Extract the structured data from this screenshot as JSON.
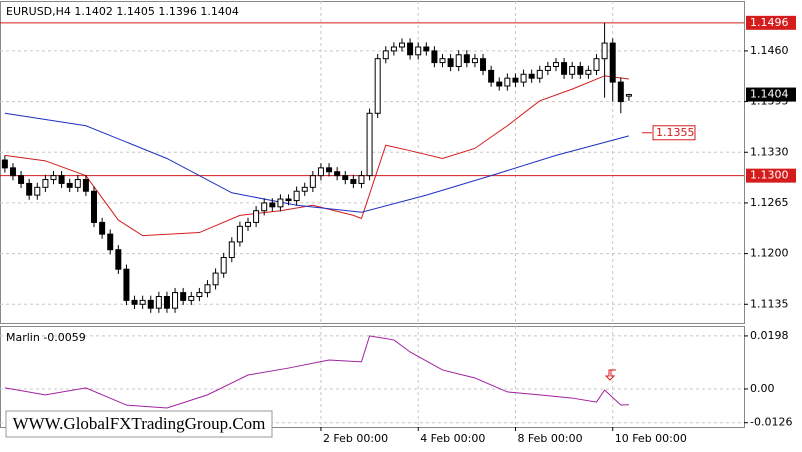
{
  "chart_data": [
    {
      "type": "candlestick",
      "title": "EURUSD,H4  1.1402 1.1405 1.1396 1.1404",
      "open": [
        1.132,
        1.131,
        1.13,
        1.129,
        1.1275,
        1.1285,
        1.1295,
        1.13,
        1.129,
        1.1285,
        1.1295,
        1.128,
        1.124,
        1.1225,
        1.1205,
        1.118,
        1.114,
        1.1135,
        1.114,
        1.113,
        1.1145,
        1.113,
        1.115,
        1.114,
        1.1145,
        1.115,
        1.116,
        1.1175,
        1.1195,
        1.1215,
        1.1235,
        1.124,
        1.1255,
        1.1265,
        1.126,
        1.127,
        1.1268,
        1.128,
        1.1285,
        1.13,
        1.131,
        1.1305,
        1.13,
        1.1295,
        1.129,
        1.13,
        1.138,
        1.145,
        1.146,
        1.1465,
        1.147,
        1.1455,
        1.1465,
        1.146,
        1.1445,
        1.145,
        1.144,
        1.1455,
        1.1445,
        1.145,
        1.1435,
        1.142,
        1.1415,
        1.1425,
        1.142,
        1.143,
        1.1425,
        1.1435,
        1.144,
        1.1445,
        1.143,
        1.144,
        1.143,
        1.1435,
        1.145,
        1.147,
        1.142,
        1.1402
      ],
      "high": [
        1.1326,
        1.1316,
        1.1306,
        1.1296,
        1.1291,
        1.1301,
        1.1306,
        1.1306,
        1.1296,
        1.1301,
        1.1301,
        1.1286,
        1.1246,
        1.1231,
        1.1211,
        1.1186,
        1.1146,
        1.1146,
        1.1146,
        1.1151,
        1.1151,
        1.1156,
        1.1156,
        1.1151,
        1.1156,
        1.1166,
        1.1181,
        1.1201,
        1.1221,
        1.1241,
        1.1246,
        1.1261,
        1.1271,
        1.1271,
        1.1276,
        1.1276,
        1.1286,
        1.1291,
        1.1306,
        1.1316,
        1.1316,
        1.1311,
        1.1306,
        1.1301,
        1.1306,
        1.1386,
        1.1456,
        1.1466,
        1.1471,
        1.1476,
        1.1476,
        1.1471,
        1.1471,
        1.1466,
        1.1456,
        1.1456,
        1.1461,
        1.1461,
        1.1456,
        1.1456,
        1.1441,
        1.1426,
        1.1431,
        1.1431,
        1.1436,
        1.1436,
        1.1441,
        1.1446,
        1.1451,
        1.1451,
        1.1446,
        1.1446,
        1.1441,
        1.1456,
        1.1496,
        1.1476,
        1.1426,
        1.1405
      ],
      "low": [
        1.1304,
        1.1294,
        1.1284,
        1.1269,
        1.1269,
        1.1279,
        1.1289,
        1.1284,
        1.1279,
        1.1279,
        1.1274,
        1.1234,
        1.1219,
        1.1199,
        1.1174,
        1.1134,
        1.1129,
        1.1129,
        1.1124,
        1.1124,
        1.1124,
        1.1124,
        1.1134,
        1.1134,
        1.1139,
        1.1144,
        1.1154,
        1.1169,
        1.1189,
        1.1209,
        1.1229,
        1.1234,
        1.1249,
        1.1254,
        1.1254,
        1.1262,
        1.1262,
        1.1274,
        1.1279,
        1.1294,
        1.1299,
        1.1294,
        1.1289,
        1.1284,
        1.1284,
        1.1294,
        1.1374,
        1.1444,
        1.1454,
        1.1459,
        1.1449,
        1.1449,
        1.1454,
        1.1439,
        1.1439,
        1.1434,
        1.1434,
        1.1439,
        1.1439,
        1.1429,
        1.1414,
        1.1409,
        1.1409,
        1.1414,
        1.1414,
        1.1419,
        1.1419,
        1.1429,
        1.1434,
        1.1424,
        1.1424,
        1.1424,
        1.1424,
        1.1429,
        1.14,
        1.1395,
        1.138,
        1.1396
      ],
      "close": [
        1.131,
        1.13,
        1.129,
        1.1275,
        1.1285,
        1.1295,
        1.13,
        1.129,
        1.1285,
        1.1295,
        1.128,
        1.124,
        1.1225,
        1.1205,
        1.118,
        1.114,
        1.1135,
        1.114,
        1.113,
        1.1145,
        1.113,
        1.115,
        1.114,
        1.1145,
        1.115,
        1.116,
        1.1175,
        1.1195,
        1.1215,
        1.1235,
        1.124,
        1.1255,
        1.1265,
        1.126,
        1.127,
        1.1268,
        1.128,
        1.1285,
        1.13,
        1.131,
        1.1305,
        1.13,
        1.1295,
        1.129,
        1.13,
        1.138,
        1.145,
        1.146,
        1.1465,
        1.147,
        1.1455,
        1.1465,
        1.146,
        1.1445,
        1.145,
        1.144,
        1.1455,
        1.1445,
        1.145,
        1.1435,
        1.142,
        1.1415,
        1.1425,
        1.142,
        1.143,
        1.1425,
        1.1435,
        1.144,
        1.1445,
        1.143,
        1.144,
        1.143,
        1.1435,
        1.145,
        1.147,
        1.142,
        1.1395,
        1.1404
      ],
      "series": [
        {
          "color": "#d41c1c",
          "x": [
            0,
            5,
            10,
            14,
            17,
            24,
            29,
            34,
            38,
            43,
            44,
            47,
            50,
            54,
            58,
            62,
            66,
            70,
            74,
            77
          ],
          "values": [
            1.1326,
            1.1319,
            1.13,
            1.1243,
            1.1223,
            1.1227,
            1.1249,
            1.1255,
            1.1262,
            1.1249,
            1.1245,
            1.1339,
            1.1332,
            1.1322,
            1.1335,
            1.1364,
            1.1396,
            1.1411,
            1.1428,
            1.1424
          ]
        },
        {
          "color": "#1c2fc4",
          "x": [
            0,
            10,
            20,
            28,
            36,
            44,
            52,
            60,
            68,
            77
          ],
          "values": [
            1.138,
            1.1364,
            1.1322,
            1.1278,
            1.1262,
            1.1253,
            1.1275,
            1.13,
            1.1326,
            1.1351
          ]
        }
      ],
      "levels": [
        {
          "value": 1.1496,
          "label": "1.1496"
        },
        {
          "value": 1.13,
          "label": "1.1300"
        }
      ],
      "current_price": {
        "value": 1.1404,
        "label": "1.1404"
      },
      "ma_marker": {
        "value": 1.1355,
        "label": "1.1355"
      },
      "xlim": [
        -0.6,
        91.2
      ],
      "ylim": [
        1.1111,
        1.1524
      ],
      "yticks": [
        {
          "value": 1.1135,
          "label": "1.1135"
        },
        {
          "value": 1.12,
          "label": "1.1200"
        },
        {
          "value": 1.1265,
          "label": "1.1265"
        },
        {
          "value": 1.133,
          "label": "1.1330"
        },
        {
          "value": 1.1395,
          "label": "1.1395"
        },
        {
          "value": 1.146,
          "label": "1.1460"
        }
      ],
      "grid": true
    },
    {
      "type": "line",
      "title": "Marlin -0.0059",
      "series": [
        {
          "color": "#a020a0",
          "x": [
            0,
            5,
            10,
            15,
            20,
            25,
            30,
            35,
            40,
            44,
            45,
            48,
            50,
            54,
            58,
            62,
            66,
            70,
            73,
            74,
            76,
            77
          ],
          "values": [
            0.0004,
            -0.0022,
            0.0004,
            -0.006,
            -0.0071,
            -0.0022,
            0.0052,
            0.0078,
            0.0108,
            0.0101,
            0.0198,
            0.0183,
            0.0138,
            0.0071,
            0.0041,
            -0.0011,
            -0.0022,
            -0.0034,
            -0.0049,
            -0.0004,
            -0.006,
            -0.0059
          ]
        }
      ],
      "xlim": [
        -0.6,
        91.2
      ],
      "ylim": [
        -0.0142,
        0.0235
      ],
      "yticks": [
        0.0198,
        {
          "value": 0,
          "label": "0.00"
        },
        -0.0126
      ],
      "xticks": [
        {
          "value": 39,
          "label": "2 Feb 00:00"
        },
        {
          "value": 51,
          "label": "4 Feb 00:00"
        },
        {
          "value": 63,
          "label": "8 Feb 00:00"
        },
        {
          "value": 75,
          "label": "10 Feb 00:00"
        }
      ],
      "grid": true
    }
  ],
  "watermark": "WWW.GlobalFXTradingGroup.Com"
}
